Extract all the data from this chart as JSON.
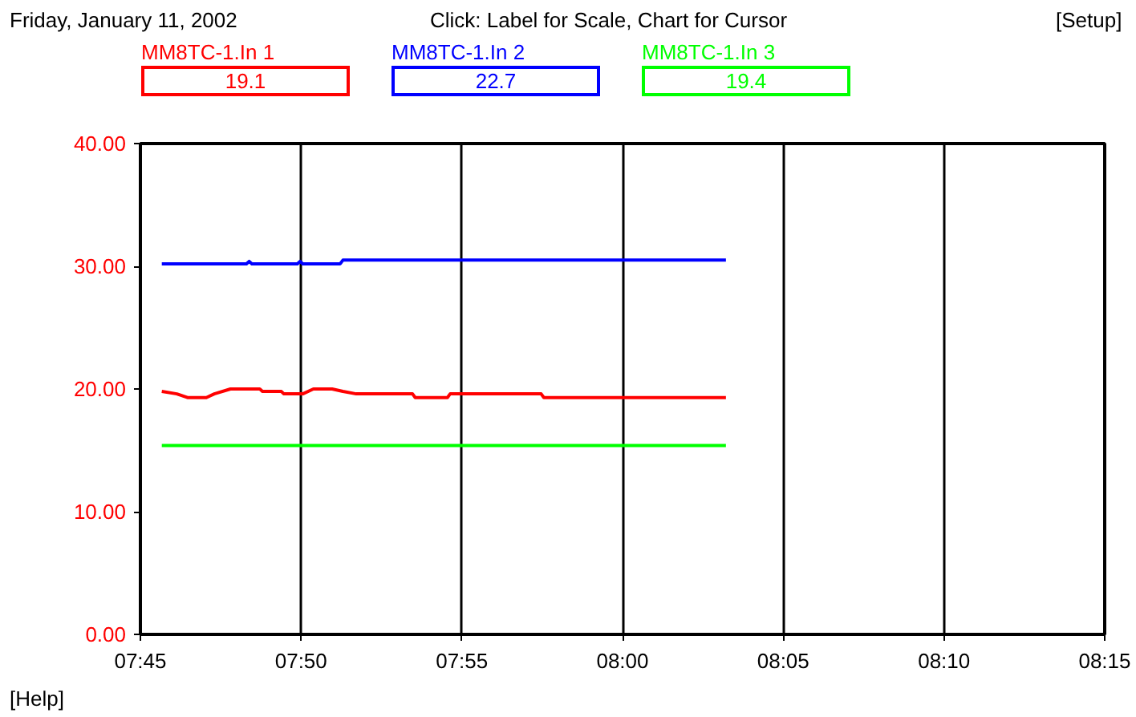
{
  "chart_data": {
    "type": "line",
    "title": "Friday, January 11, 2002",
    "subtitle": "Click: Label for Scale, Chart for Cursor",
    "annotations": [
      "19.1",
      "22.7",
      "19.4",
      "[Setup]",
      "[Help]"
    ],
    "xlim": [
      7.75,
      8.25
    ],
    "xticks": [
      {
        "value": 7.75,
        "label": "07:45"
      },
      {
        "value": 7.8333,
        "label": "07:50"
      },
      {
        "value": 7.9167,
        "label": "07:55"
      },
      {
        "value": 8.0,
        "label": "08:00"
      },
      {
        "value": 8.0833,
        "label": "08:05"
      },
      {
        "value": 8.1667,
        "label": "08:10"
      },
      {
        "value": 8.25,
        "label": "08:15"
      }
    ],
    "ylim": [
      0,
      40
    ],
    "yticks": [
      {
        "value": 0,
        "label": "0.00"
      },
      {
        "value": 10,
        "label": "10.00"
      },
      {
        "value": 20,
        "label": "20.00"
      },
      {
        "value": 30,
        "label": "30.00"
      },
      {
        "value": 40,
        "label": "40.00"
      }
    ],
    "grid": "x",
    "series": [
      {
        "name": "MM8TC-1.In 1",
        "color": "#ff0000",
        "x": [
          7.7611,
          7.7689,
          7.7744,
          7.7842,
          7.7883,
          7.7967,
          7.8119,
          7.8133,
          7.8231,
          7.8244,
          7.8342,
          7.8397,
          7.8494,
          7.855,
          7.8619,
          7.8911,
          7.8925,
          7.9092,
          7.9106,
          7.9578,
          7.9592,
          8.0536
        ],
        "values": [
          19.8,
          19.6,
          19.3,
          19.3,
          19.6,
          20.0,
          20.0,
          19.8,
          19.8,
          19.6,
          19.6,
          20.0,
          20.0,
          19.8,
          19.6,
          19.6,
          19.3,
          19.3,
          19.6,
          19.6,
          19.3,
          19.3
        ]
      },
      {
        "name": "MM8TC-1.In 2",
        "color": "#0000ff",
        "x": [
          7.7611,
          7.805,
          7.8064,
          7.8078,
          7.8314,
          7.8328,
          7.8342,
          7.8536,
          7.855,
          8.0536
        ],
        "values": [
          30.2,
          30.2,
          30.4,
          30.2,
          30.2,
          30.4,
          30.2,
          30.2,
          30.5,
          30.5
        ]
      },
      {
        "name": "MM8TC-1.In 3",
        "color": "#00ff00",
        "x": [
          7.7611,
          8.0536
        ],
        "values": [
          15.4,
          15.4
        ]
      }
    ]
  }
}
